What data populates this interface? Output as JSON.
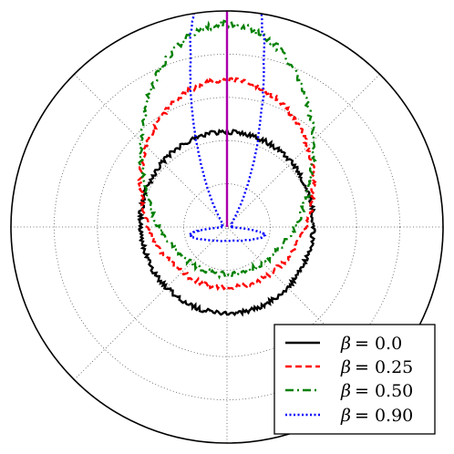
{
  "chart_data": {
    "type": "line",
    "projection": "polar",
    "title": "",
    "xlabel": "",
    "ylabel": "",
    "grid": true,
    "radial_tick_labels_shown": false,
    "angular_tick_labels_shown": false,
    "legend_position": "bottom-right",
    "vertical_marker": {
      "color": "#aa00aa",
      "angle_deg": 90
    },
    "series": [
      {
        "name": "β = 0.0",
        "symbol": "β",
        "value_label": "= 0.0",
        "color": "#000000",
        "linestyle": "solid",
        "pattern": "roughly circular, radius about 0.40 of plot radius, slightly shifted toward top",
        "center_offset_y": -0.02,
        "base_radius": 0.4,
        "stretch_y": 1.05
      },
      {
        "name": "β = 0.25",
        "symbol": "β",
        "value_label": "= 0.25",
        "color": "#ff0000",
        "linestyle": "dashed",
        "pattern": "egg-shaped, extending upward",
        "center_offset_y": -0.2,
        "base_radius": 0.4,
        "stretch_y": 1.2
      },
      {
        "name": "β = 0.50",
        "symbol": "β",
        "value_label": "= 0.50",
        "color": "#008000",
        "linestyle": "dashdot",
        "pattern": "elongated upward",
        "center_offset_y": -0.36,
        "base_radius": 0.4,
        "stretch_y": 1.45
      },
      {
        "name": "β = 0.90",
        "symbol": "β",
        "value_label": "= 0.90",
        "color": "#0000ff",
        "linestyle": "dotted",
        "pattern": "narrow U-shaped lobe concentrated around 90 degrees, near zero at origin",
        "center_offset_y": -0.6,
        "base_radius": 0.3,
        "stretch_y": 2.5
      }
    ]
  }
}
